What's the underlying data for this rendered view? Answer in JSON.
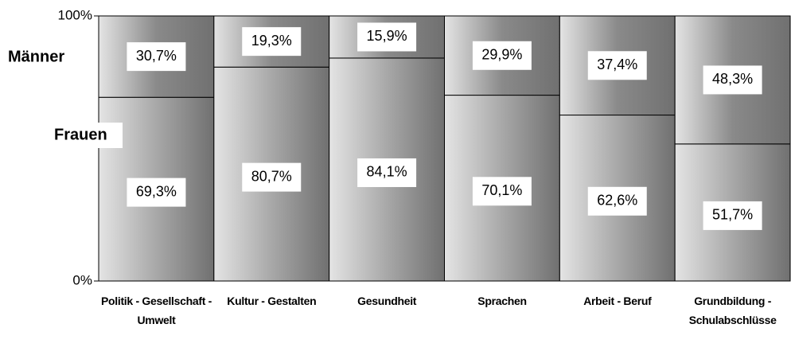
{
  "chart_data": {
    "type": "stacked_bar",
    "categories": [
      "Politik - Gesellschaft - Umwelt",
      "Kultur - Gestalten",
      "Gesundheit",
      "Sprachen",
      "Arbeit - Beruf",
      "Grundbildung - Schulabschlüsse"
    ],
    "series": [
      {
        "name": "Frauen",
        "color": "#a8a8a8",
        "values": [
          69.3,
          80.7,
          84.1,
          70.1,
          62.6,
          51.7
        ],
        "value_labels": [
          "69,3%",
          "80,7%",
          "84,1%",
          "70,1%",
          "62,6%",
          "51,7%"
        ]
      },
      {
        "name": "Männer",
        "color": "#8a8a8a",
        "values": [
          30.7,
          19.3,
          15.9,
          29.9,
          37.4,
          48.3
        ],
        "value_labels": [
          "30,7%",
          "19,3%",
          "15,9%",
          "29,9%",
          "37,4%",
          "48,3%"
        ]
      }
    ],
    "ylim": [
      0,
      100
    ],
    "yticks": [
      {
        "value": 0,
        "label": "0%"
      },
      {
        "value": 100,
        "label": "100%"
      }
    ]
  }
}
